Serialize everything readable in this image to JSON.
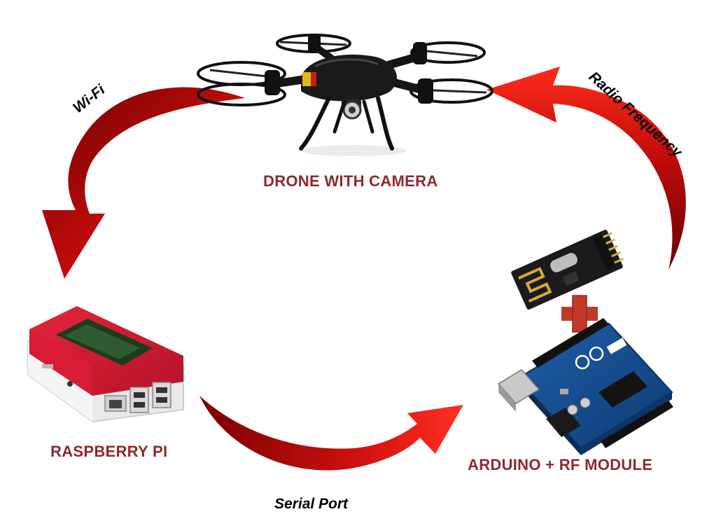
{
  "colors": {
    "label": "#8e2a2a",
    "arrow_dark": "#7a0000",
    "arrow_light": "#e01010",
    "plus": "#c0392b"
  },
  "nodes": {
    "drone": {
      "label": "DRONE WITH CAMERA",
      "icon": "drone-icon"
    },
    "raspberry_pi": {
      "label": "RASPBERRY PI",
      "icon": "raspberry-pi-icon"
    },
    "arduino": {
      "label": "ARDUINO + RF MODULE",
      "icon": "arduino-board-icon"
    },
    "rf_module": {
      "icon": "rf-module-icon"
    },
    "plus": {
      "icon": "plus-icon"
    }
  },
  "links": {
    "wifi": {
      "label": "Wi-Fi"
    },
    "radio": {
      "label": "Radio Frequency"
    },
    "serial": {
      "label": "Serial Port"
    }
  }
}
